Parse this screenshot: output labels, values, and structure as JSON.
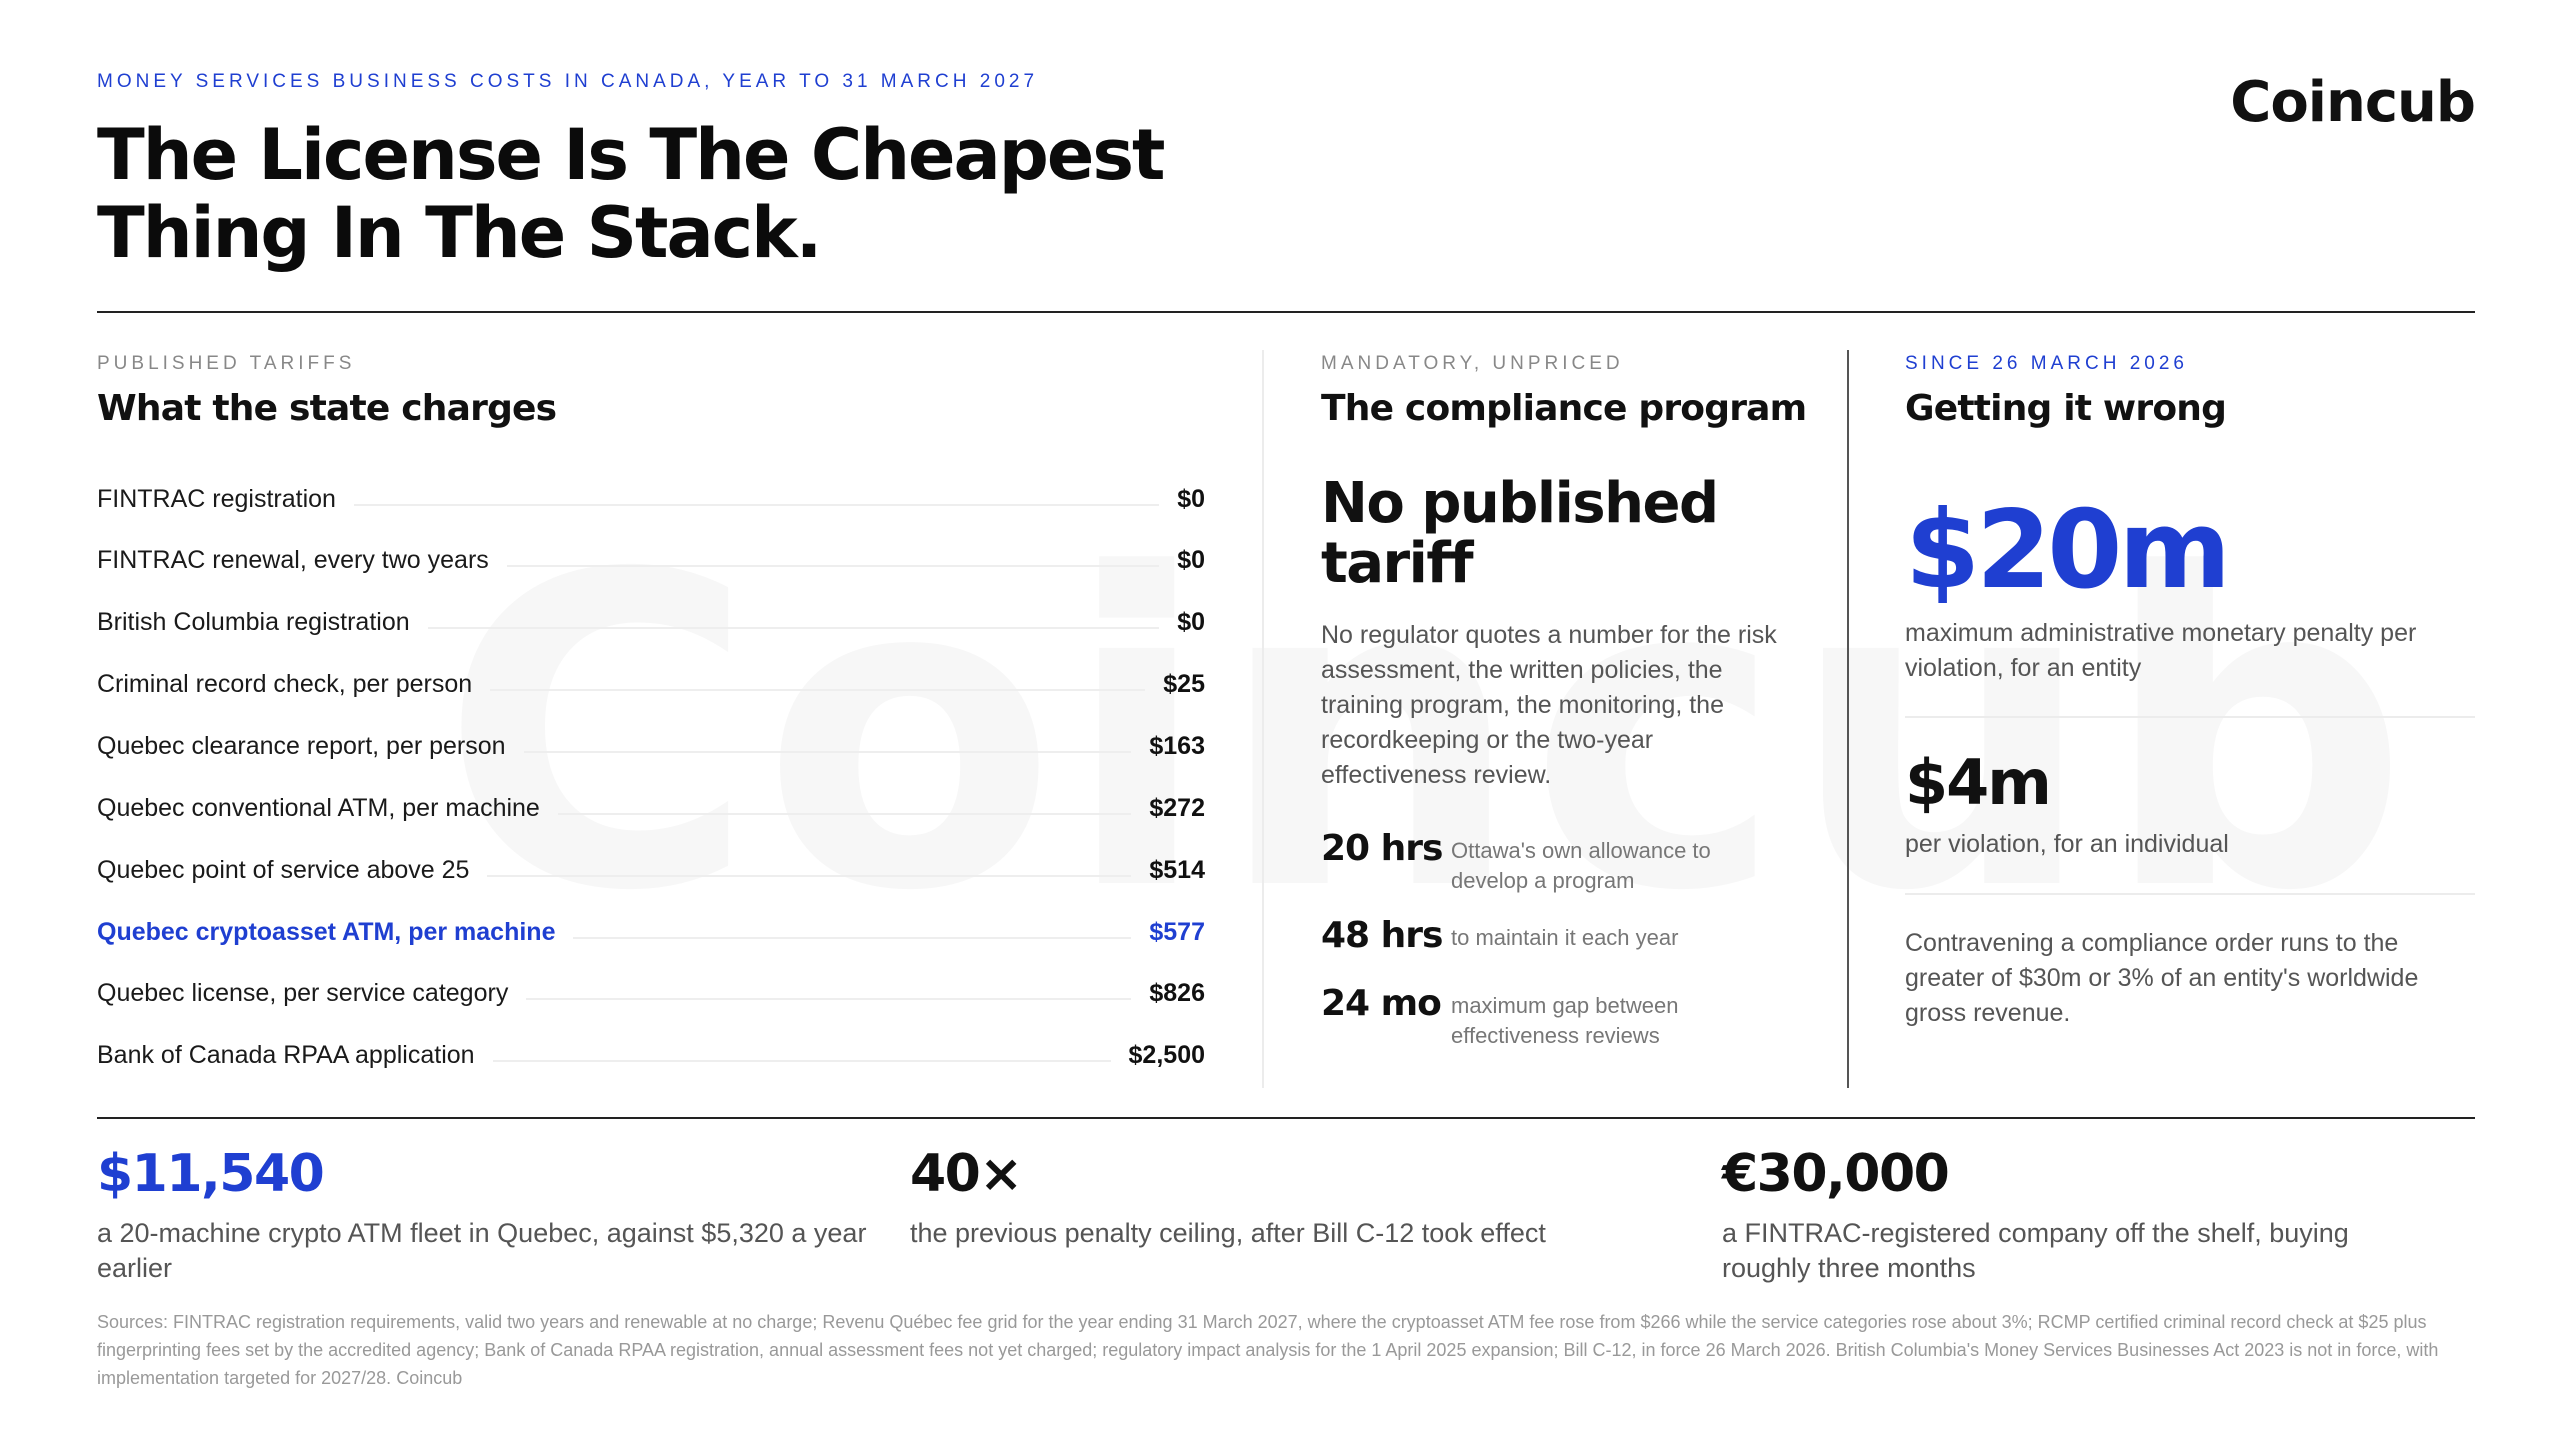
{
  "header": {
    "eyebrow": "MONEY SERVICES BUSINESS COSTS IN CANADA, YEAR TO 31 MARCH 2027",
    "title_line1": "The License Is The Cheapest",
    "title_line2": "Thing In The Stack.",
    "logo": "Coincub",
    "watermark": "Coincub"
  },
  "colors": {
    "accent": "#1f3fd1",
    "text": "#111111",
    "muted": "#888888"
  },
  "tariffs": {
    "eyebrow": "PUBLISHED TARIFFS",
    "heading": "What the state charges",
    "rows": [
      {
        "label": "FINTRAC registration",
        "value": "$0"
      },
      {
        "label": "FINTRAC renewal, every two years",
        "value": "$0"
      },
      {
        "label": "British Columbia registration",
        "value": "$0"
      },
      {
        "label": "Criminal record check, per person",
        "value": "$25"
      },
      {
        "label": "Quebec clearance report, per person",
        "value": "$163"
      },
      {
        "label": "Quebec conventional ATM, per machine",
        "value": "$272"
      },
      {
        "label": "Quebec point of service above 25",
        "value": "$514"
      },
      {
        "label": "Quebec cryptoasset ATM, per machine",
        "value": "$577"
      },
      {
        "label": "Quebec license, per service category",
        "value": "$826"
      },
      {
        "label": "Bank of Canada RPAA application",
        "value": "$2,500"
      }
    ]
  },
  "compliance": {
    "eyebrow": "MANDATORY, UNPRICED",
    "heading": "The compliance program",
    "big_line1": "No published",
    "big_line2": "tariff",
    "paragraph": "No regulator quotes a number for the risk assessment, the written policies, the training program, the monitoring, the recordkeeping or the two-year effectiveness review.",
    "stats": [
      {
        "value": "20 hrs",
        "text": "Ottawa's own allowance to develop a program"
      },
      {
        "value": "48 hrs",
        "text": "to maintain it each year"
      },
      {
        "value": "24 mo",
        "text": "maximum gap between effectiveness reviews"
      }
    ]
  },
  "penalties": {
    "eyebrow": "SINCE 26 MARCH 2026",
    "heading": "Getting it wrong",
    "entity_value": "$20m",
    "entity_text": "maximum administrative monetary penalty per violation, for an entity",
    "individual_value": "$4m",
    "individual_text": "per violation, for an individual",
    "order_text": "Contravening a compliance order runs to the greater of $30m or 3% of an entity's worldwide gross revenue."
  },
  "bottom": [
    {
      "value": "$11,540",
      "text": "a 20-machine crypto ATM fleet in Quebec, against $5,320 a year earlier"
    },
    {
      "value": "40×",
      "text": "the previous penalty ceiling, after Bill C-12 took effect"
    },
    {
      "value": "€30,000",
      "text": "a FINTRAC-registered company off the shelf, buying roughly three months"
    }
  ],
  "sources": "Sources: FINTRAC registration requirements, valid two years and renewable at no charge; Revenu Québec fee grid for the year ending 31 March 2027, where the cryptoasset ATM fee rose from $266 while the service categories rose about 3%; RCMP certified criminal record check at $25 plus fingerprinting fees set by the accredited agency; Bank of Canada RPAA registration, annual assessment fees not yet charged; regulatory impact analysis for the 1 April 2025 expansion; Bill C-12, in force 26 March 2026. British Columbia's Money Services Businesses Act 2023 is not in force, with implementation targeted for 2027/28. Coincub"
}
